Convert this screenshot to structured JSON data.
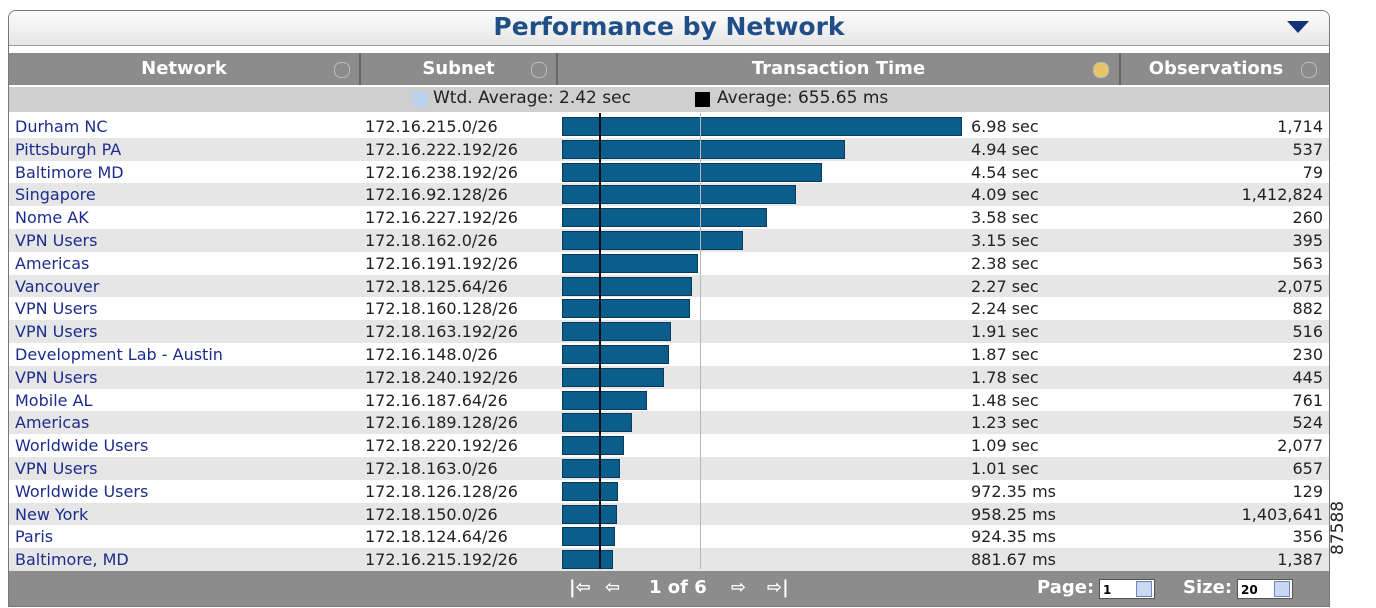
{
  "header": {
    "title": "Performance by Network"
  },
  "columns": [
    "Network",
    "Subnet",
    "Transaction Time",
    "Observations"
  ],
  "legend": {
    "wtd_average": {
      "label": "Wtd. Average: 2.42 sec",
      "value": 2420
    },
    "average": {
      "label": "Average: 655.65 ms",
      "value": 655.65
    }
  },
  "rows": [
    {
      "network": "Durham NC",
      "subnet": "172.16.215.0/26",
      "time": {
        "value": 6980,
        "label": "6.98 sec"
      },
      "observations": "1,714"
    },
    {
      "network": "Pittsburgh PA",
      "subnet": "172.16.222.192/26",
      "time": {
        "value": 4940,
        "label": "4.94 sec"
      },
      "observations": "537"
    },
    {
      "network": "Baltimore MD",
      "subnet": "172.16.238.192/26",
      "time": {
        "value": 4540,
        "label": "4.54 sec"
      },
      "observations": "79"
    },
    {
      "network": "Singapore",
      "subnet": "172.16.92.128/26",
      "time": {
        "value": 4090,
        "label": "4.09 sec"
      },
      "observations": "1,412,824"
    },
    {
      "network": "Nome AK",
      "subnet": "172.16.227.192/26",
      "time": {
        "value": 3580,
        "label": "3.58 sec"
      },
      "observations": "260"
    },
    {
      "network": "VPN Users",
      "subnet": "172.18.162.0/26",
      "time": {
        "value": 3150,
        "label": "3.15 sec"
      },
      "observations": "395"
    },
    {
      "network": "Americas",
      "subnet": "172.16.191.192/26",
      "time": {
        "value": 2380,
        "label": "2.38 sec"
      },
      "observations": "563"
    },
    {
      "network": "Vancouver",
      "subnet": "172.18.125.64/26",
      "time": {
        "value": 2270,
        "label": "2.27 sec"
      },
      "observations": "2,075"
    },
    {
      "network": "VPN Users",
      "subnet": "172.18.160.128/26",
      "time": {
        "value": 2240,
        "label": "2.24 sec"
      },
      "observations": "882"
    },
    {
      "network": "VPN Users",
      "subnet": "172.18.163.192/26",
      "time": {
        "value": 1910,
        "label": "1.91 sec"
      },
      "observations": "516"
    },
    {
      "network": "Development Lab - Austin",
      "subnet": "172.16.148.0/26",
      "time": {
        "value": 1870,
        "label": "1.87 sec"
      },
      "observations": "230"
    },
    {
      "network": "VPN Users",
      "subnet": "172.18.240.192/26",
      "time": {
        "value": 1780,
        "label": "1.78 sec"
      },
      "observations": "445"
    },
    {
      "network": "Mobile AL",
      "subnet": "172.16.187.64/26",
      "time": {
        "value": 1480,
        "label": "1.48 sec"
      },
      "observations": "761"
    },
    {
      "network": "Americas",
      "subnet": "172.16.189.128/26",
      "time": {
        "value": 1230,
        "label": "1.23 sec"
      },
      "observations": "524"
    },
    {
      "network": "Worldwide Users",
      "subnet": "172.18.220.192/26",
      "time": {
        "value": 1090,
        "label": "1.09 sec"
      },
      "observations": "2,077"
    },
    {
      "network": "VPN Users",
      "subnet": "172.18.163.0/26",
      "time": {
        "value": 1010,
        "label": "1.01 sec"
      },
      "observations": "657"
    },
    {
      "network": "Worldwide Users",
      "subnet": "172.18.126.128/26",
      "time": {
        "value": 972.35,
        "label": "972.35 ms"
      },
      "observations": "129"
    },
    {
      "network": "New York",
      "subnet": "172.18.150.0/26",
      "time": {
        "value": 958.25,
        "label": "958.25 ms"
      },
      "observations": "1,403,641"
    },
    {
      "network": "Paris",
      "subnet": "172.18.124.64/26",
      "time": {
        "value": 924.35,
        "label": "924.35 ms"
      },
      "observations": "356"
    },
    {
      "network": "Baltimore, MD",
      "subnet": "172.16.215.192/26",
      "time": {
        "value": 881.67,
        "label": "881.67 ms"
      },
      "observations": "1,387"
    }
  ],
  "pager": {
    "page_text": "1 of 6",
    "page_label": "Page:",
    "page_value": "1",
    "size_label": "Size:",
    "size_value": "20"
  },
  "side_id": "87588"
}
